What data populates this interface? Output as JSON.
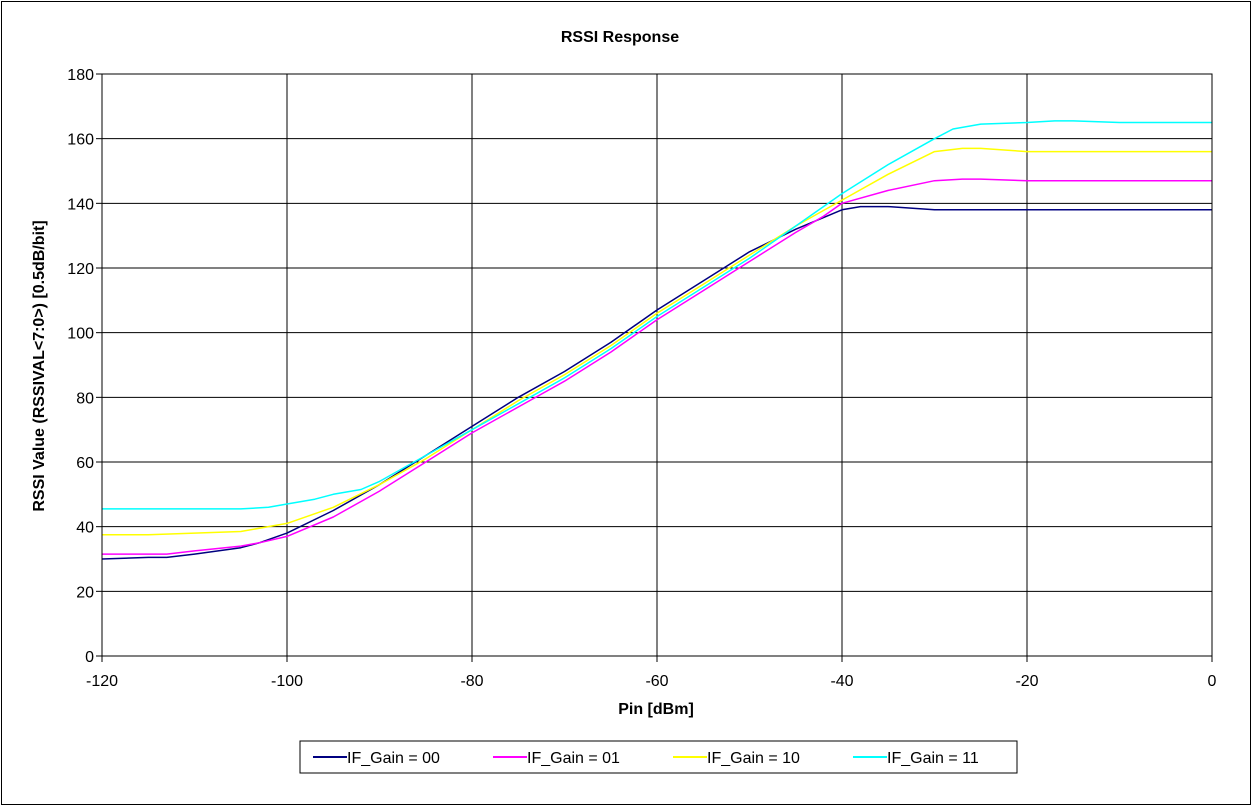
{
  "chart_data": {
    "type": "line",
    "title": "RSSI Response",
    "xlabel": "Pin [dBm]",
    "ylabel": "RSSI Value (RSSIVAL<7:0>) [0.5dB/bit]",
    "xlim": [
      -120,
      0
    ],
    "ylim": [
      0,
      180
    ],
    "xticks": [
      "-120",
      "-100",
      "-80",
      "-60",
      "-40",
      "-20",
      "0"
    ],
    "yticks": [
      "0",
      "20",
      "40",
      "60",
      "80",
      "100",
      "120",
      "140",
      "160",
      "180"
    ],
    "grid": true,
    "legend_position": "bottom",
    "series": [
      {
        "name": "IF_Gain = 00",
        "color": "#000080",
        "x": [
          -120,
          -115,
          -113,
          -110,
          -105,
          -103,
          -100,
          -95,
          -90,
          -85,
          -80,
          -75,
          -70,
          -65,
          -60,
          -55,
          -50,
          -45,
          -40,
          -38,
          -35,
          -30,
          -25,
          -20,
          -15,
          -10,
          -5,
          0
        ],
        "y": [
          30,
          30.5,
          30.5,
          31.5,
          33.5,
          35,
          38,
          45,
          53,
          62,
          71,
          80,
          88,
          97,
          107,
          116,
          125,
          132,
          138,
          139,
          139,
          138,
          138,
          138,
          138,
          138,
          138,
          138
        ]
      },
      {
        "name": "IF_Gain = 01",
        "color": "#FF00FF",
        "x": [
          -120,
          -115,
          -113,
          -110,
          -105,
          -103,
          -100,
          -95,
          -90,
          -85,
          -80,
          -75,
          -70,
          -65,
          -60,
          -55,
          -50,
          -45,
          -42,
          -40,
          -35,
          -30,
          -27,
          -25,
          -20,
          -15,
          -10,
          -5,
          0
        ],
        "y": [
          31.5,
          31.5,
          31.5,
          32.5,
          34,
          35,
          37,
          43,
          51,
          60,
          69,
          77,
          85,
          94,
          104,
          113,
          122,
          131,
          136,
          140,
          144,
          147,
          147.5,
          147.5,
          147,
          147,
          147,
          147,
          147
        ]
      },
      {
        "name": "IF_Gain = 10",
        "color": "#FFFF00",
        "x": [
          -120,
          -115,
          -110,
          -105,
          -100,
          -95,
          -90,
          -85,
          -80,
          -75,
          -70,
          -65,
          -60,
          -55,
          -50,
          -45,
          -40,
          -35,
          -30,
          -27,
          -25,
          -20,
          -15,
          -10,
          -5,
          0
        ],
        "y": [
          37.5,
          37.5,
          38,
          38.5,
          41,
          46,
          53,
          61,
          70,
          79,
          87,
          96,
          106,
          115,
          124,
          133,
          141,
          149,
          156,
          157,
          157,
          156,
          156,
          156,
          156,
          156
        ]
      },
      {
        "name": "IF_Gain = 11",
        "color": "#00FFFF",
        "x": [
          -120,
          -115,
          -110,
          -105,
          -102,
          -100,
          -97,
          -95,
          -92,
          -90,
          -85,
          -80,
          -75,
          -70,
          -65,
          -60,
          -55,
          -50,
          -45,
          -40,
          -35,
          -30,
          -28,
          -25,
          -20,
          -17,
          -15,
          -10,
          -5,
          0
        ],
        "y": [
          45.5,
          45.5,
          45.5,
          45.5,
          46,
          47,
          48.5,
          50,
          51.5,
          54,
          62,
          70,
          78,
          86,
          95,
          105,
          114,
          123,
          133,
          143,
          152,
          160,
          163,
          164.5,
          165,
          165.5,
          165.5,
          165,
          165,
          165
        ]
      }
    ]
  }
}
